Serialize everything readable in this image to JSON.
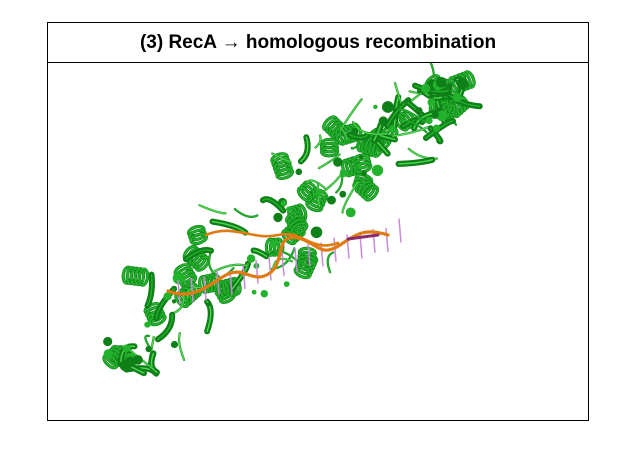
{
  "figure": {
    "title": "(3) RecA → homologous recombination",
    "image_description_icon": "protein-ribbon-structure",
    "colors": {
      "protein": "#22b22b",
      "protein_dark": "#0f7f18",
      "protein_light": "#4fd84f",
      "dna_strand": "#e07a12",
      "dna_bases": "#c98bd8",
      "dna_end": "#8b2d6b"
    }
  }
}
